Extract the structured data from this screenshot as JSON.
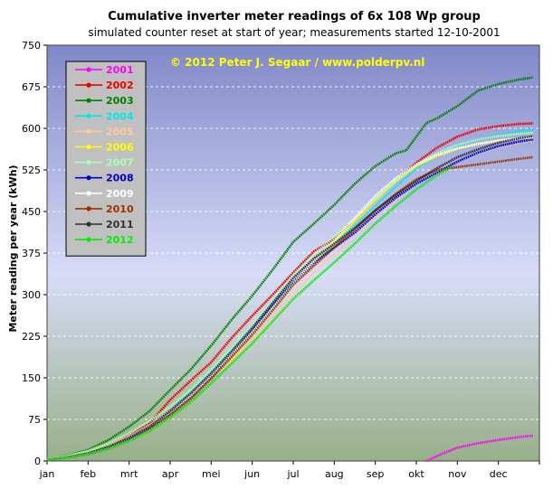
{
  "chart_data": {
    "type": "line",
    "title": "Cumulative inverter meter readings of 6x 108 Wp group",
    "subtitle": "simulated  counter reset at start of year; measurements  started 12-10-2001",
    "annotation": "© 2012 Peter J. Segaar / www.polderpv.nl",
    "annotation_color": "#ffff00",
    "ylabel": "Meter reading per year (kWh)",
    "xlabel": "",
    "x_unit": "month (0 = start of january, 12 = end of december)",
    "xlim": [
      0,
      12
    ],
    "ylim": [
      0,
      750
    ],
    "yticks": [
      "0",
      "75",
      "150",
      "225",
      "300",
      "375",
      "450",
      "525",
      "600",
      "675",
      "750"
    ],
    "xtick_labels": [
      "jan",
      "feb",
      "mrt",
      "apr",
      "mei",
      "jun",
      "jul",
      "aug",
      "sep",
      "okt",
      "nov",
      "dec"
    ],
    "grid": true,
    "legend_position": "top-left",
    "colors": {
      "bg_top": "#8088c8",
      "bg_mid": "#d8dcf8",
      "bg_bottom": "#98b088",
      "legend_bg": "#c0c0c0"
    },
    "series": [
      {
        "name": "2001",
        "color": "#ff00ff",
        "x": [
          9.25,
          9.6,
          10.0,
          10.5,
          11.0,
          11.5,
          11.85
        ],
        "y": [
          0,
          12,
          24,
          32,
          38,
          43,
          46
        ]
      },
      {
        "name": "2002",
        "color": "#ee0000",
        "x": [
          0,
          0.5,
          1,
          1.5,
          2,
          2.5,
          3,
          3.5,
          4,
          4.5,
          5,
          5.5,
          6,
          6.5,
          7,
          7.5,
          8,
          8.5,
          9,
          9.5,
          10,
          10.5,
          11,
          11.5,
          11.85
        ],
        "y": [
          2,
          8,
          15,
          28,
          45,
          68,
          110,
          145,
          178,
          222,
          262,
          300,
          340,
          378,
          400,
          432,
          470,
          505,
          538,
          565,
          585,
          598,
          604,
          608,
          609
        ]
      },
      {
        "name": "2003",
        "color": "#008000",
        "x": [
          0,
          0.5,
          1,
          1.5,
          2,
          2.5,
          3,
          3.5,
          4,
          4.5,
          5,
          5.5,
          6,
          6.5,
          7,
          7.5,
          8,
          8.5,
          8.75,
          9.25,
          9.5,
          10,
          10.5,
          11,
          11.5,
          11.85
        ],
        "y": [
          3,
          10,
          20,
          38,
          62,
          90,
          128,
          165,
          208,
          255,
          298,
          345,
          395,
          428,
          462,
          500,
          532,
          555,
          560,
          610,
          618,
          640,
          668,
          680,
          688,
          692
        ]
      },
      {
        "name": "2004",
        "color": "#00e8e8",
        "x": [
          0,
          0.5,
          1,
          1.5,
          2,
          2.5,
          3,
          3.5,
          4,
          4.5,
          5,
          5.5,
          6,
          6.5,
          7,
          7.5,
          8,
          8.5,
          9,
          9.5,
          10,
          10.5,
          11,
          11.5,
          11.85
        ],
        "y": [
          2,
          7,
          14,
          26,
          42,
          62,
          90,
          125,
          162,
          200,
          240,
          282,
          322,
          358,
          392,
          425,
          460,
          495,
          528,
          550,
          568,
          580,
          588,
          595,
          598
        ]
      },
      {
        "name": "2005",
        "color": "#ffc8a0",
        "x": [
          0,
          0.5,
          1,
          1.5,
          2,
          2.5,
          3,
          3.5,
          4,
          4.5,
          5,
          5.5,
          6,
          6.5,
          7,
          7.5,
          8,
          8.5,
          9,
          9.5,
          10,
          10.5,
          11,
          11.5,
          11.85
        ],
        "y": [
          2,
          8,
          16,
          28,
          44,
          64,
          90,
          118,
          150,
          182,
          218,
          258,
          300,
          340,
          372,
          405,
          440,
          470,
          500,
          520,
          540,
          555,
          566,
          574,
          578
        ]
      },
      {
        "name": "2006",
        "color": "#ffff00",
        "x": [
          0,
          0.5,
          1,
          1.5,
          2,
          2.5,
          3,
          3.5,
          4,
          4.5,
          5,
          5.5,
          6,
          6.5,
          7,
          7.5,
          8,
          8.5,
          9,
          9.5,
          10,
          10.5,
          11,
          11.5,
          11.85
        ],
        "y": [
          2,
          7,
          14,
          24,
          38,
          56,
          82,
          112,
          148,
          186,
          228,
          272,
          318,
          358,
          395,
          432,
          470,
          505,
          532,
          550,
          563,
          572,
          578,
          582,
          584
        ]
      },
      {
        "name": "2007",
        "color": "#a8ffb0",
        "x": [
          0,
          0.5,
          1,
          1.5,
          2,
          2.5,
          3,
          3.5,
          4,
          4.5,
          5,
          5.5,
          6,
          6.5,
          7,
          7.5,
          8,
          8.5,
          9,
          9.5,
          10,
          10.5,
          11,
          11.5,
          11.85
        ],
        "y": [
          3,
          9,
          18,
          32,
          50,
          72,
          98,
          128,
          165,
          204,
          245,
          290,
          335,
          372,
          405,
          438,
          472,
          505,
          535,
          555,
          570,
          580,
          586,
          590,
          592
        ]
      },
      {
        "name": "2008",
        "color": "#0000cc",
        "x": [
          0,
          0.5,
          1,
          1.5,
          2,
          2.5,
          3,
          3.5,
          4,
          4.5,
          5,
          5.5,
          6,
          6.5,
          7,
          7.5,
          8,
          8.5,
          9,
          9.5,
          10,
          10.5,
          11,
          11.5,
          11.85
        ],
        "y": [
          2,
          7,
          13,
          24,
          40,
          60,
          86,
          116,
          152,
          192,
          235,
          280,
          322,
          358,
          385,
          412,
          445,
          475,
          500,
          520,
          540,
          556,
          568,
          576,
          580
        ]
      },
      {
        "name": "2009",
        "color": "#ffffff",
        "x": [
          0,
          0.5,
          1,
          1.5,
          2,
          2.5,
          3,
          3.5,
          4,
          4.5,
          5,
          5.5,
          6,
          6.5,
          7,
          7.5,
          8,
          8.5,
          9,
          9.5,
          10,
          10.5,
          11,
          11.5,
          11.85
        ],
        "y": [
          2,
          8,
          15,
          26,
          42,
          62,
          88,
          118,
          154,
          192,
          232,
          276,
          320,
          360,
          398,
          438,
          478,
          510,
          535,
          552,
          564,
          572,
          578,
          582,
          584
        ]
      },
      {
        "name": "2010",
        "color": "#a03000",
        "x": [
          0,
          0.5,
          1,
          1.5,
          2,
          2.5,
          3,
          3.5,
          4,
          4.5,
          5,
          5.5,
          6,
          6.5,
          7,
          7.5,
          8,
          8.5,
          9,
          9.5,
          10,
          10.5,
          11,
          11.5,
          11.85
        ],
        "y": [
          2,
          6,
          12,
          22,
          36,
          56,
          82,
          112,
          148,
          188,
          228,
          272,
          318,
          352,
          385,
          418,
          452,
          482,
          508,
          525,
          530,
          535,
          540,
          545,
          548
        ]
      },
      {
        "name": "2011",
        "color": "#303030",
        "x": [
          0,
          0.5,
          1,
          1.5,
          2,
          2.5,
          3,
          3.5,
          4,
          4.5,
          5,
          5.5,
          6,
          6.5,
          7,
          7.5,
          8,
          8.5,
          9,
          9.5,
          10,
          10.5,
          11,
          11.5,
          11.85
        ],
        "y": [
          2,
          7,
          14,
          26,
          42,
          62,
          90,
          122,
          158,
          198,
          240,
          285,
          330,
          365,
          392,
          420,
          452,
          480,
          505,
          528,
          548,
          562,
          574,
          582,
          586
        ]
      },
      {
        "name": "2012",
        "color": "#00ee00",
        "x": [
          0,
          0.5,
          1,
          1.5,
          2,
          2.5,
          3,
          3.5,
          4,
          4.5,
          5,
          5.5,
          6,
          6.5,
          7,
          7.5,
          8,
          8.5,
          9,
          9.5,
          9.85
        ],
        "y": [
          2,
          6,
          12,
          22,
          36,
          54,
          78,
          106,
          140,
          176,
          212,
          252,
          292,
          326,
          358,
          392,
          428,
          460,
          490,
          515,
          530
        ]
      }
    ]
  }
}
